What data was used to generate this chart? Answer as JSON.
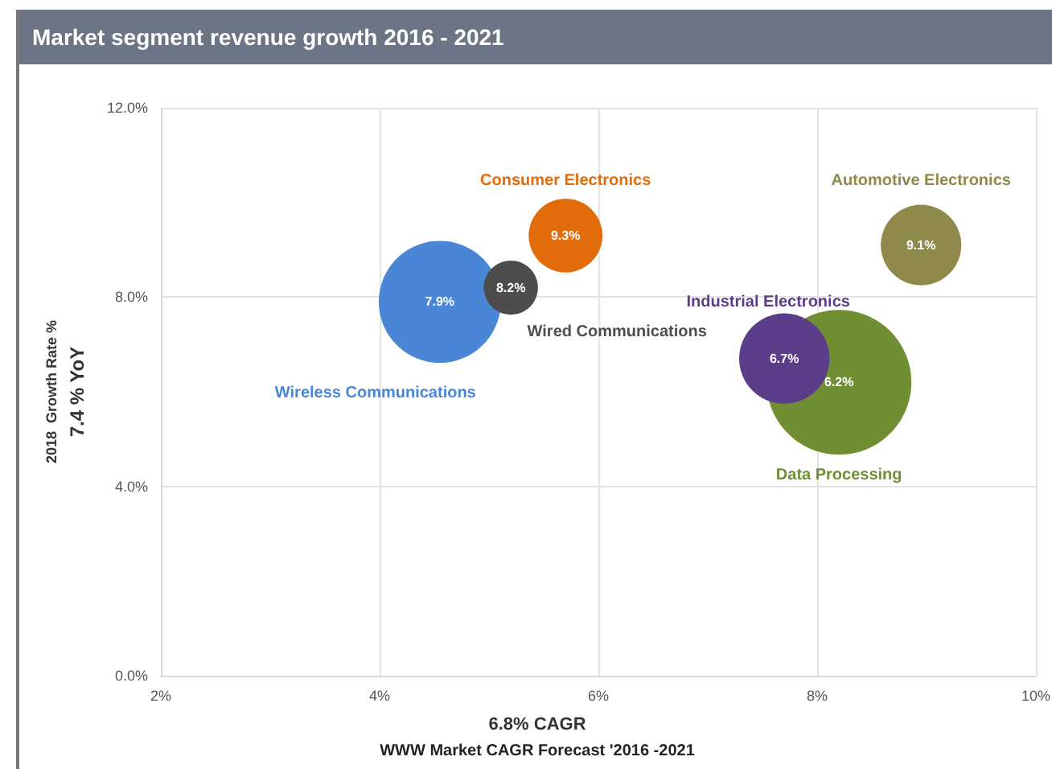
{
  "chart_data": {
    "type": "bubble",
    "title": "Market segment revenue growth 2016 - 2021",
    "xlabel": "6.8% CAGR\nWWW Market CAGR Forecast '2016 -2021",
    "ylabel": "2018  Growth Rate %\n7.4 % YoY",
    "xlim": [
      2,
      10
    ],
    "xticks": [
      {
        "value": 2,
        "label": "2%"
      },
      {
        "value": 4,
        "label": "4%"
      },
      {
        "value": 6,
        "label": "6%"
      },
      {
        "value": 8,
        "label": "8%"
      },
      {
        "value": 10,
        "label": "10%"
      }
    ],
    "ylim": [
      0,
      12
    ],
    "yticks": [
      {
        "value": 0,
        "label": "0.0%"
      },
      {
        "value": 4,
        "label": "4.0%"
      },
      {
        "value": 8,
        "label": "8.0%"
      },
      {
        "value": 12,
        "label": "12.0%"
      }
    ],
    "grid": true,
    "legend": false,
    "series": [
      {
        "name": "Wireless Communications",
        "color": "#4a86d6",
        "x": [
          4.55
        ],
        "values": [
          7.9
        ],
        "sizes": [
          0.71
        ],
        "value_labels": [
          "7.9%"
        ]
      },
      {
        "name": "Wired Communications",
        "color": "#4d4d4d",
        "x": [
          5.2
        ],
        "values": [
          8.2
        ],
        "sizes": [
          0.14
        ],
        "value_labels": [
          "8.2%"
        ]
      },
      {
        "name": "Consumer Electronics",
        "color": "#e36c0a",
        "x": [
          5.7
        ],
        "values": [
          9.3
        ],
        "sizes": [
          0.26
        ],
        "value_labels": [
          "9.3%"
        ]
      },
      {
        "name": "Automotive Electronics",
        "color": "#8f8a4c",
        "x": [
          8.95
        ],
        "values": [
          9.1
        ],
        "sizes": [
          0.31
        ],
        "value_labels": [
          "9.1%"
        ]
      },
      {
        "name": "Data Processing",
        "color": "#6f8f32",
        "x": [
          8.2
        ],
        "values": [
          6.2
        ],
        "sizes": [
          1
        ],
        "value_labels": [
          "6.2%"
        ]
      },
      {
        "name": "Industrial Electronics",
        "color": "#5c3d8a",
        "x": [
          7.7
        ],
        "values": [
          6.7
        ],
        "sizes": [
          0.39
        ],
        "value_labels": [
          "6.7%"
        ]
      }
    ]
  }
}
